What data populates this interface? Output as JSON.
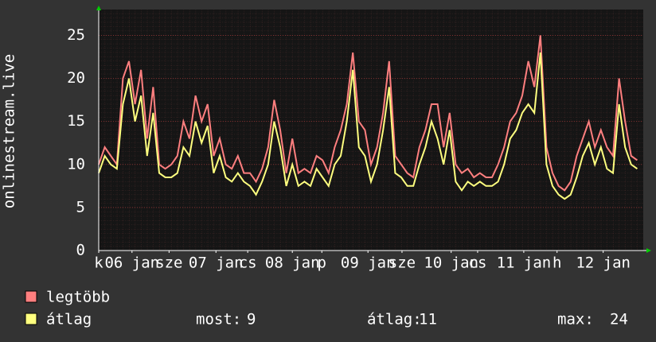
{
  "chart_data": {
    "type": "line",
    "y_label": "onlinestream.live",
    "x": [
      0,
      0.08,
      0.16,
      0.24,
      0.32,
      0.4,
      0.48,
      0.56,
      0.64,
      0.72,
      0.8,
      0.88,
      0.96,
      1.04,
      1.12,
      1.2,
      1.28,
      1.36,
      1.44,
      1.52,
      1.6,
      1.68,
      1.76,
      1.84,
      1.92,
      2,
      2.08,
      2.16,
      2.24,
      2.32,
      2.4,
      2.48,
      2.56,
      2.64,
      2.72,
      2.8,
      2.88,
      2.96,
      3.04,
      3.12,
      3.2,
      3.28,
      3.36,
      3.44,
      3.52,
      3.6,
      3.68,
      3.76,
      3.84,
      3.92,
      4,
      4.08,
      4.16,
      4.24,
      4.32,
      4.4,
      4.48,
      4.56,
      4.64,
      4.72,
      4.8,
      4.88,
      4.96,
      5.04,
      5.12,
      5.2,
      5.28,
      5.36,
      5.44,
      5.52,
      5.6,
      5.68,
      5.76,
      5.84,
      5.92,
      6,
      6.08,
      6.16,
      6.24,
      6.32,
      6.4,
      6.48,
      6.56,
      6.64,
      6.72,
      6.8,
      6.88,
      6.96,
      7.04,
      7.12
    ],
    "series": [
      {
        "name": "legtöbb",
        "color": "#ff7f7f",
        "values": [
          10,
          12,
          11,
          10,
          20,
          22,
          17,
          21,
          13,
          19,
          10,
          9.5,
          10,
          11,
          15,
          13,
          18,
          15,
          17,
          11,
          13,
          10,
          9.5,
          11,
          9,
          9,
          8,
          9.5,
          12,
          17.5,
          14,
          9,
          13,
          9,
          9.5,
          9,
          11,
          10.5,
          9,
          12,
          14,
          17,
          23,
          15,
          14,
          10,
          12,
          16,
          22,
          11,
          10,
          9,
          8.5,
          12,
          14,
          17,
          17,
          12,
          16,
          10,
          9,
          9.5,
          8.5,
          9,
          8.5,
          8.5,
          10,
          12,
          15,
          16,
          18,
          22,
          19,
          25,
          12,
          9,
          7.5,
          7,
          8,
          11,
          13,
          15,
          12,
          14,
          12,
          11,
          20,
          15,
          11,
          10.5
        ]
      },
      {
        "name": "átlag",
        "color": "#ffff7f",
        "values": [
          9,
          11,
          10,
          9.5,
          17,
          20,
          15,
          18,
          11,
          16,
          9,
          8.5,
          8.5,
          9,
          12,
          11,
          15,
          12.5,
          14.5,
          9,
          11,
          8.5,
          8,
          9,
          8,
          7.5,
          6.5,
          8,
          10,
          15,
          12,
          7.5,
          10,
          7.5,
          8,
          7.5,
          9.5,
          8.5,
          7.5,
          10,
          11,
          15,
          21,
          12,
          11,
          8,
          10,
          14,
          19,
          9,
          8.5,
          7.5,
          7.5,
          10,
          12,
          15,
          13,
          10,
          14,
          8,
          7,
          8,
          7.5,
          8,
          7.5,
          7.5,
          8,
          10,
          13,
          14,
          16,
          17,
          16,
          23,
          10,
          7.5,
          6.5,
          6,
          6.5,
          8.5,
          11,
          12.5,
          10,
          12,
          9.5,
          9,
          17,
          12,
          10,
          9.5
        ]
      }
    ],
    "xlim": [
      0,
      7.2
    ],
    "xticks": [
      {
        "value": 0,
        "label": "k"
      },
      {
        "value": 0.44,
        "label": "06 jan"
      },
      {
        "value": 0.93,
        "label": "sze"
      },
      {
        "value": 1.55,
        "label": "07 jan"
      },
      {
        "value": 1.97,
        "label": "cs"
      },
      {
        "value": 2.56,
        "label": "08 jan"
      },
      {
        "value": 2.95,
        "label": "p"
      },
      {
        "value": 3.56,
        "label": "09 jan"
      },
      {
        "value": 4.01,
        "label": "sze"
      },
      {
        "value": 4.66,
        "label": "10 jan"
      },
      {
        "value": 5.01,
        "label": "cs"
      },
      {
        "value": 5.62,
        "label": "11 jan"
      },
      {
        "value": 6.06,
        "label": "h"
      },
      {
        "value": 6.67,
        "label": "12 jan"
      }
    ],
    "ylim": [
      0,
      28
    ],
    "yticks": [
      0,
      5,
      10,
      15,
      20,
      25
    ],
    "grid": true,
    "stats": [
      {
        "label": "most:",
        "value": 9
      },
      {
        "label": "átlag:",
        "value": 11
      },
      {
        "label": "max:",
        "value": 24
      }
    ]
  }
}
